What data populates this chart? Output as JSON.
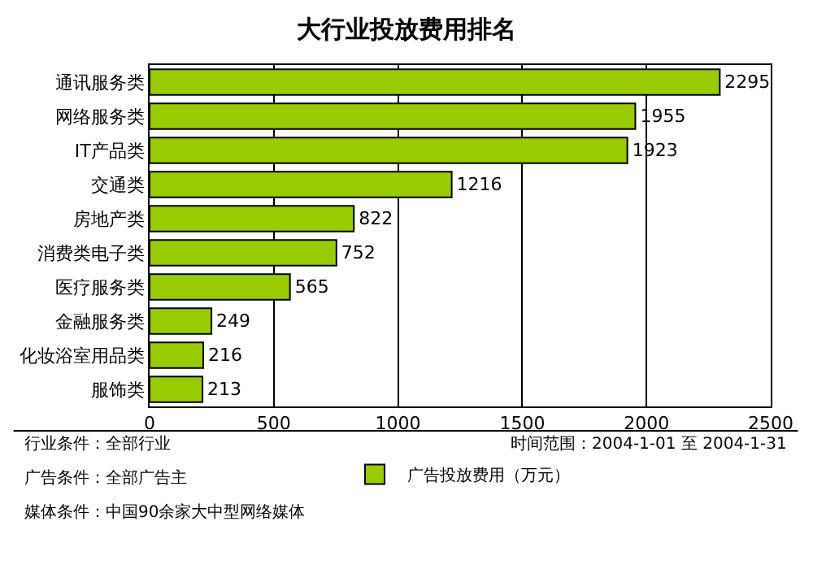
{
  "chart_data": {
    "type": "bar",
    "orientation": "horizontal",
    "title": "大行业投放费用排名",
    "categories": [
      "通讯服务类",
      "网络服务类",
      "IT产品类",
      "交通类",
      "房地产类",
      "消费类电子类",
      "医疗服务类",
      "金融服务类",
      "化妆浴室用品类",
      "服饰类"
    ],
    "series": [
      {
        "name": "广告投放费用（万元）",
        "color": "#99cc00",
        "values": [
          2295,
          1955,
          1923,
          1216,
          822,
          752,
          565,
          249,
          216,
          213
        ]
      }
    ],
    "xlim": [
      0,
      2500
    ],
    "xticks": [
      0,
      500,
      1000,
      1500,
      2000,
      2500
    ],
    "grid": "x",
    "legend": "bottom",
    "data_labels": true,
    "annotations": [
      "行业条件：全部行业",
      "广告条件：全部广告主",
      "媒体条件：中国90余家大中型网络媒体",
      "时间范围：2004-1-01 至 2004-1-31"
    ]
  }
}
